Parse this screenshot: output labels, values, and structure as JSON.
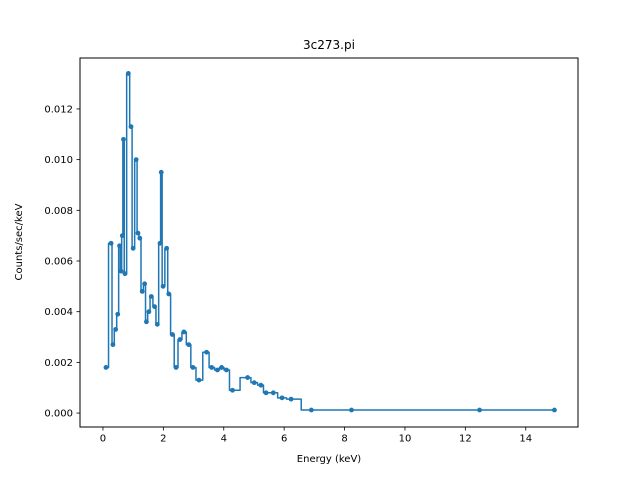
{
  "figure": {
    "background": "#ffffff",
    "frame_color": "#000000"
  },
  "chart_data": {
    "type": "line",
    "title": "3c273.pi",
    "xlabel": "Energy (keV)",
    "ylabel": "Counts/sec/keV",
    "line_style": "steps-mid",
    "markers": "point",
    "color": "#1f77b4",
    "grid": false,
    "legend": "none",
    "xlim": [
      -0.76,
      15.73
    ],
    "ylim": [
      -0.00055,
      0.01401
    ],
    "xticks": [
      0,
      2,
      4,
      6,
      8,
      10,
      12,
      14
    ],
    "xtick_labels": [
      "0",
      "2",
      "4",
      "6",
      "8",
      "10",
      "12",
      "14"
    ],
    "yticks": [
      0.0,
      0.002,
      0.004,
      0.006,
      0.008,
      0.01,
      0.012
    ],
    "ytick_labels": [
      "0.000",
      "0.002",
      "0.004",
      "0.006",
      "0.008",
      "0.010",
      "0.012"
    ],
    "x": [
      0.1,
      0.27,
      0.33,
      0.42,
      0.49,
      0.55,
      0.6,
      0.64,
      0.68,
      0.73,
      0.84,
      0.93,
      1.0,
      1.1,
      1.16,
      1.22,
      1.3,
      1.38,
      1.44,
      1.52,
      1.6,
      1.71,
      1.8,
      1.89,
      1.93,
      1.99,
      2.11,
      2.18,
      2.3,
      2.42,
      2.55,
      2.68,
      2.84,
      2.98,
      3.18,
      3.43,
      3.6,
      3.79,
      3.93,
      4.09,
      4.29,
      4.79,
      5.01,
      5.23,
      5.4,
      5.64,
      5.93,
      6.23,
      6.9,
      8.23,
      12.47,
      14.95
    ],
    "y": [
      0.0018,
      0.0067,
      0.0027,
      0.0033,
      0.0039,
      0.0066,
      0.0056,
      0.007,
      0.0108,
      0.0055,
      0.0134,
      0.0113,
      0.0065,
      0.01,
      0.0071,
      0.0069,
      0.0048,
      0.0051,
      0.0036,
      0.004,
      0.0046,
      0.0042,
      0.0035,
      0.0067,
      0.0095,
      0.005,
      0.0065,
      0.0047,
      0.0031,
      0.0018,
      0.0029,
      0.0032,
      0.0027,
      0.0018,
      0.0013,
      0.0024,
      0.0018,
      0.0017,
      0.0018,
      0.0017,
      0.0009,
      0.0014,
      0.0012,
      0.0011,
      0.0008,
      0.0008,
      0.0006,
      0.00055,
      0.00012,
      0.00012,
      0.00012,
      0.00012
    ]
  }
}
